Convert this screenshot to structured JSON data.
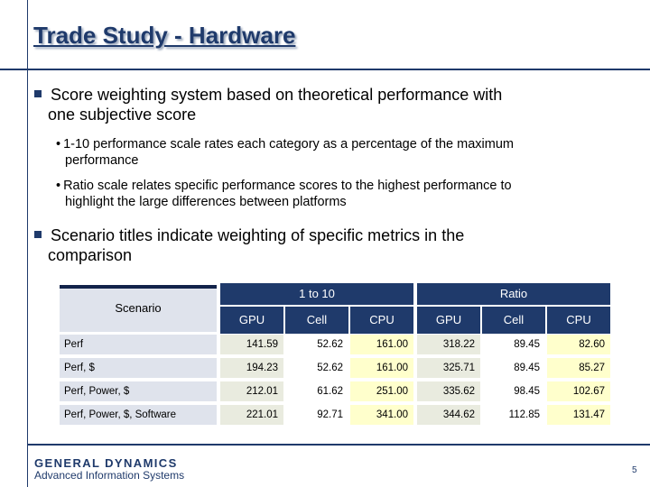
{
  "slide": {
    "title": "Trade Study - Hardware",
    "bullets": [
      {
        "line1": "Score weighting system based on theoretical performance with",
        "line2": "one subjective score",
        "subbullets": [
          {
            "line1": "1-10 performance scale rates each category as a percentage of the maximum",
            "line2": "performance"
          },
          {
            "line1": "Ratio scale relates specific performance scores to the highest performance to",
            "line2": "highlight the large differences between platforms"
          }
        ]
      },
      {
        "line1": "Scenario titles indicate weighting of specific metrics in the",
        "line2": "comparison"
      }
    ]
  },
  "table": {
    "scenario_header": "Scenario",
    "groups": [
      "1 to 10",
      "Ratio"
    ],
    "columns": [
      "GPU",
      "Cell",
      "CPU",
      "GPU",
      "Cell",
      "CPU"
    ],
    "rows": [
      {
        "label": "Perf",
        "values": [
          "141.59",
          "52.62",
          "161.00",
          "318.22",
          "89.45",
          "82.60"
        ]
      },
      {
        "label": "Perf, $",
        "values": [
          "194.23",
          "52.62",
          "161.00",
          "325.71",
          "89.45",
          "85.27"
        ]
      },
      {
        "label": "Perf, Power, $",
        "values": [
          "212.01",
          "61.62",
          "251.00",
          "335.62",
          "98.45",
          "102.67"
        ]
      },
      {
        "label": "Perf, Power, $, Software",
        "values": [
          "221.01",
          "92.71",
          "341.00",
          "344.62",
          "112.85",
          "131.47"
        ]
      }
    ]
  },
  "footer": {
    "logo_line1": "GENERAL DYNAMICS",
    "logo_line2": "Advanced Information Systems",
    "page_number": "5"
  },
  "colors": {
    "brand_navy": "#1f3a6b",
    "label_bg": "#dfe3ec",
    "cpu_highlight": "#ffffcc"
  }
}
